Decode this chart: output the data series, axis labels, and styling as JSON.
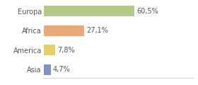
{
  "categories": [
    "Europa",
    "Africa",
    "America",
    "Asia"
  ],
  "values": [
    60.5,
    27.1,
    7.8,
    4.7
  ],
  "labels": [
    "60,5%",
    "27,1%",
    "7,8%",
    "4,7%"
  ],
  "bar_colors": [
    "#b5c98a",
    "#e8aa76",
    "#e8d060",
    "#8090c8"
  ],
  "background_color": "#ffffff",
  "xlim": [
    0,
    100
  ],
  "bar_height": 0.55,
  "label_fontsize": 7,
  "category_fontsize": 7
}
